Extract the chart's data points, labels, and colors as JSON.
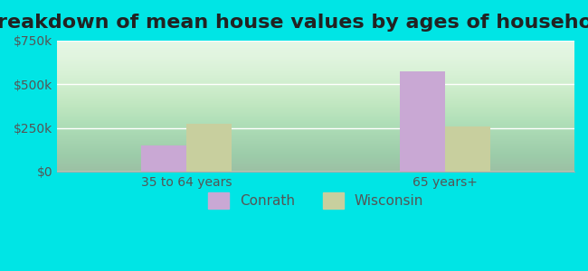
{
  "title": "Breakdown of mean house values by ages of householders",
  "categories": [
    "35 to 64 years",
    "65 years+"
  ],
  "series": {
    "Conrath": [
      150000,
      575000
    ],
    "Wisconsin": [
      275000,
      260000
    ]
  },
  "bar_colors": {
    "Conrath": "#c9a8d4",
    "Wisconsin": "#c8cf9e"
  },
  "ylim": [
    0,
    750000
  ],
  "yticks": [
    0,
    250000,
    500000,
    750000
  ],
  "ytick_labels": [
    "$0",
    "$250k",
    "$500k",
    "$750k"
  ],
  "background_color": "#00e5e5",
  "plot_bg_start": "#e8f5e9",
  "plot_bg_end": "#f0fff0",
  "title_fontsize": 16,
  "legend_fontsize": 11,
  "tick_fontsize": 10,
  "bar_width": 0.35,
  "group_positions": [
    1,
    3
  ]
}
